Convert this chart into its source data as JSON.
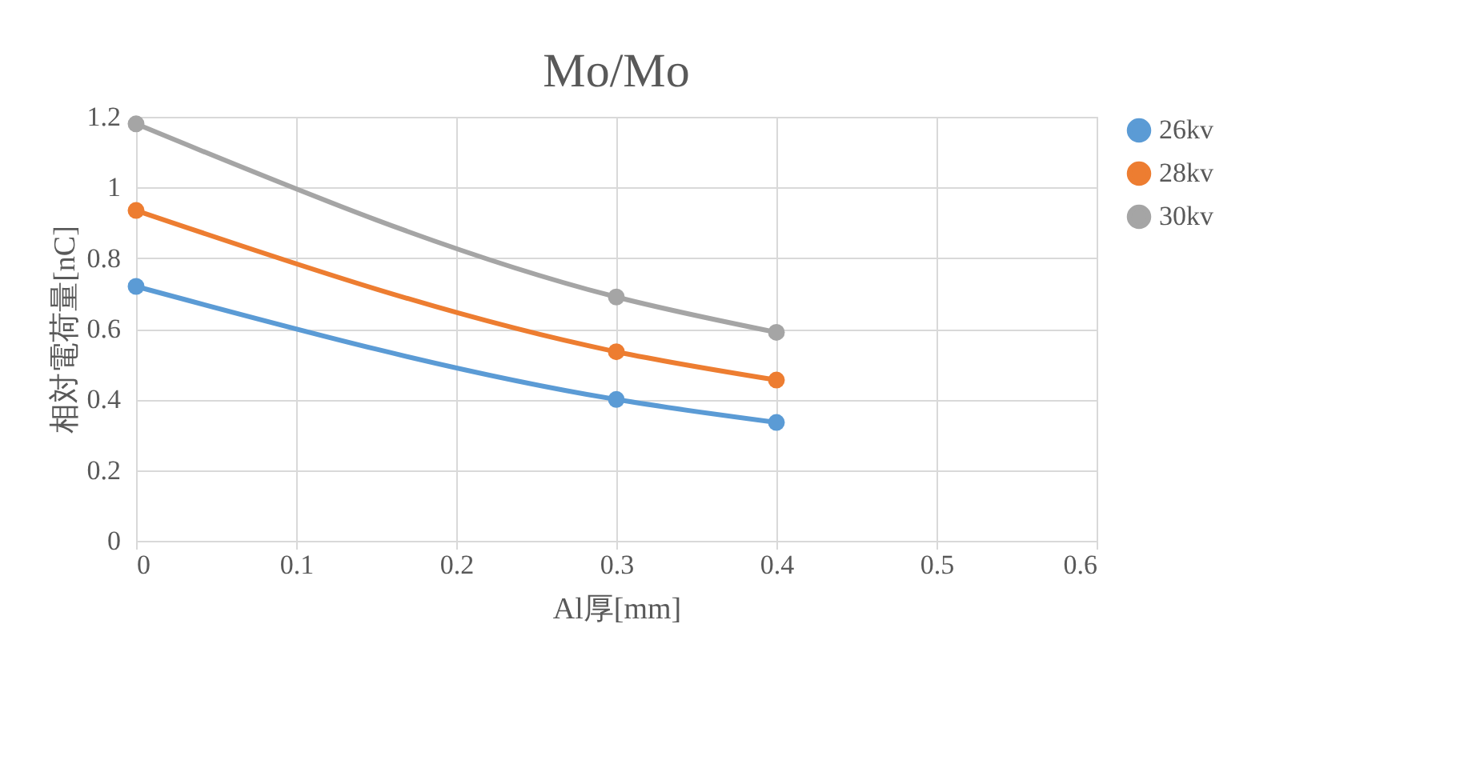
{
  "chart_data": {
    "type": "line",
    "title": "Mo/Mo",
    "xlabel": "Al厚[mm]",
    "ylabel": "相対電荷量[nC]",
    "x": [
      0,
      0.3,
      0.4
    ],
    "series": [
      {
        "name": "26kv",
        "color": "#5b9bd5",
        "values": [
          0.72,
          0.4,
          0.335
        ]
      },
      {
        "name": "28kv",
        "color": "#ed7d31",
        "values": [
          0.935,
          0.535,
          0.455
        ]
      },
      {
        "name": "30kv",
        "color": "#a5a5a5",
        "values": [
          1.18,
          0.69,
          0.59
        ]
      }
    ],
    "xlim": [
      0,
      0.6
    ],
    "xticks": [
      0,
      0.1,
      0.2,
      0.3,
      0.4,
      0.5,
      0.6
    ],
    "ylim": [
      0,
      1.2
    ],
    "yticks": [
      0,
      0.2,
      0.4,
      0.6,
      0.8,
      1,
      1.2
    ],
    "grid": true,
    "legend": "right",
    "marker": "circle",
    "line_style": "solid"
  }
}
